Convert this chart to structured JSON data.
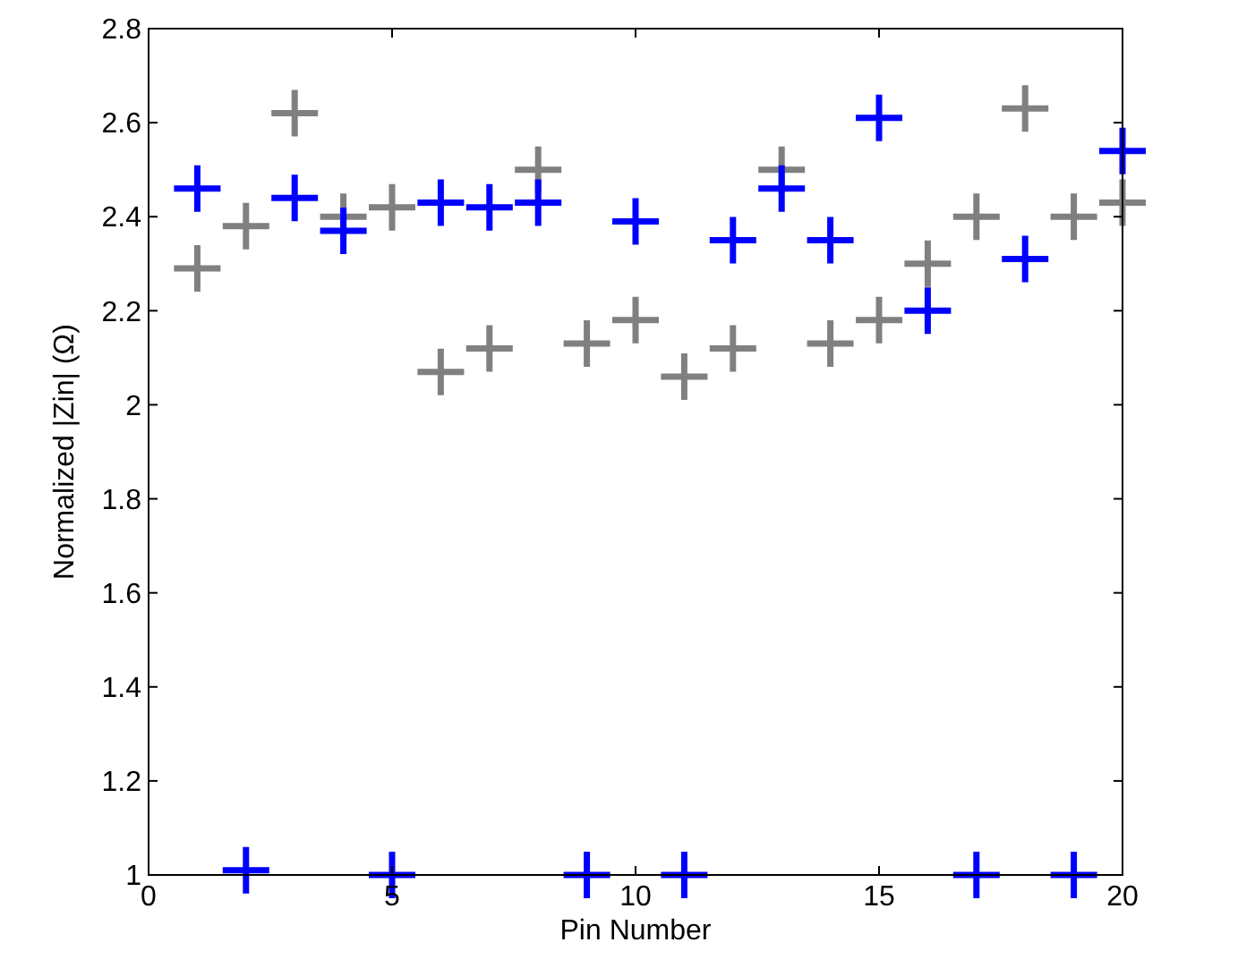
{
  "chart_data": {
    "type": "scatter",
    "xlabel": "Pin Number",
    "ylabel": "Normalized |Zin| (Ω)",
    "x": [
      1,
      2,
      3,
      4,
      5,
      6,
      7,
      8,
      9,
      10,
      11,
      12,
      13,
      14,
      15,
      16,
      17,
      18,
      19,
      20
    ],
    "xlim": [
      0,
      20
    ],
    "xticks": [
      0,
      5,
      10,
      15,
      20
    ],
    "ylim": [
      1,
      2.8
    ],
    "yticks": [
      1,
      1.2,
      1.4,
      1.6,
      1.8,
      2,
      2.2,
      2.4,
      2.6,
      2.8
    ],
    "marker": "cross",
    "grid": false,
    "series": [
      {
        "color": "#808080",
        "values": [
          2.29,
          2.38,
          2.62,
          2.4,
          2.42,
          2.07,
          2.12,
          2.5,
          2.13,
          2.18,
          2.06,
          2.12,
          2.5,
          2.13,
          2.18,
          2.3,
          2.4,
          2.63,
          2.4,
          2.43
        ]
      },
      {
        "color": "#0000ff",
        "values": [
          2.46,
          1.01,
          2.44,
          2.37,
          1.0,
          2.43,
          2.42,
          2.43,
          1.0,
          2.39,
          1.0,
          2.35,
          2.46,
          2.35,
          2.61,
          2.2,
          1.0,
          2.31,
          1.0,
          2.54
        ]
      }
    ]
  }
}
